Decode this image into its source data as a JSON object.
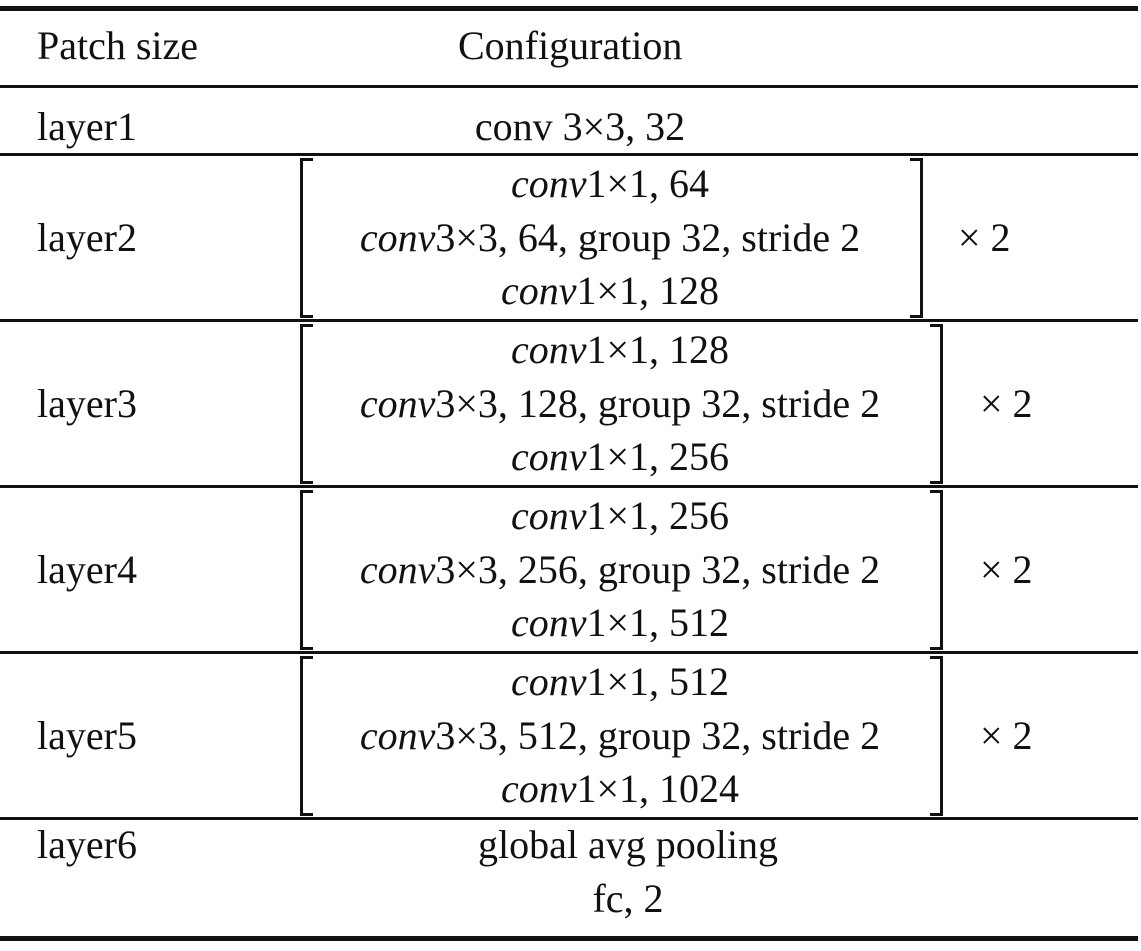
{
  "table": {
    "headers": {
      "patch": "Patch size",
      "config": "Configuration"
    },
    "rows": [
      {
        "label": "layer1",
        "lines": [
          {
            "it": "",
            "rest": "conv 3×3, 32"
          }
        ],
        "mult": ""
      },
      {
        "label": "layer2",
        "lines": [
          {
            "it": "conv",
            "rest": "1×1, 64"
          },
          {
            "it": "conv",
            "rest": "3×3, 64, group 32, stride 2"
          },
          {
            "it": "conv",
            "rest": "1×1, 128"
          }
        ],
        "mult": "× 2"
      },
      {
        "label": "layer3",
        "lines": [
          {
            "it": "conv",
            "rest": "1×1, 128"
          },
          {
            "it": "conv",
            "rest": "3×3, 128, group 32, stride 2"
          },
          {
            "it": "conv",
            "rest": "1×1, 256"
          }
        ],
        "mult": "× 2"
      },
      {
        "label": "layer4",
        "lines": [
          {
            "it": "conv",
            "rest": "1×1, 256"
          },
          {
            "it": "conv",
            "rest": "3×3, 256, group 32, stride 2"
          },
          {
            "it": "conv",
            "rest": "1×1, 512"
          }
        ],
        "mult": "× 2"
      },
      {
        "label": "layer5",
        "lines": [
          {
            "it": "conv",
            "rest": "1×1, 512"
          },
          {
            "it": "conv",
            "rest": "3×3, 512, group 32, stride 2"
          },
          {
            "it": "conv",
            "rest": "1×1, 1024"
          }
        ],
        "mult": "× 2"
      },
      {
        "label": "layer6",
        "lines": [
          {
            "it": "",
            "rest": "global avg pooling"
          },
          {
            "it": "",
            "rest": "fc, 2"
          }
        ],
        "mult": ""
      }
    ]
  }
}
